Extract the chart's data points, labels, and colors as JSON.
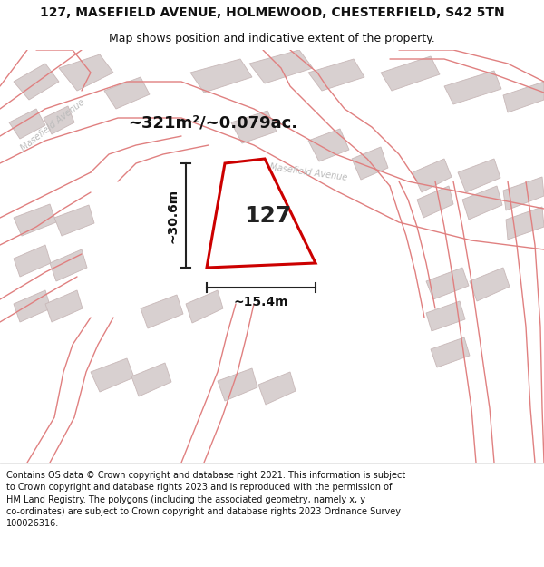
{
  "title": "127, MASEFIELD AVENUE, HOLMEWOOD, CHESTERFIELD, S42 5TN",
  "subtitle": "Map shows position and indicative extent of the property.",
  "footer": "Contains OS data © Crown copyright and database right 2021. This information is subject to Crown copyright and database rights 2023 and is reproduced with the permission of HM Land Registry. The polygons (including the associated geometry, namely x, y co-ordinates) are subject to Crown copyright and database rights 2023 Ordnance Survey 100026316.",
  "area_text": "~321m²/~0.079ac.",
  "number_label": "127",
  "dim_height": "~30.6m",
  "dim_width": "~15.4m",
  "map_bg": "#f0eded",
  "road_line_color": "#e08080",
  "building_fc": "#d8d0d0",
  "building_ec": "#c8b8b8",
  "plot_fc": "#ffffff",
  "plot_ec": "#cc0000",
  "title_fontsize": 10,
  "subtitle_fontsize": 9,
  "footer_fontsize": 7,
  "area_fontsize": 13,
  "number_fontsize": 18,
  "dim_fontsize": 10
}
